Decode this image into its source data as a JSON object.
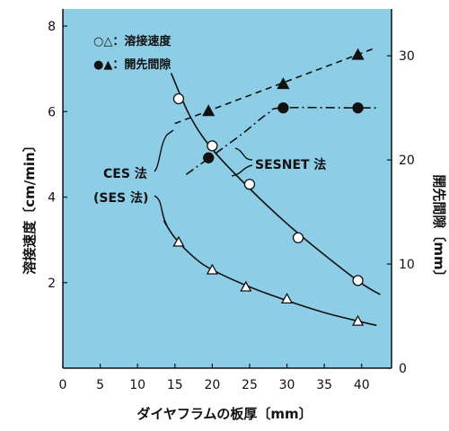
{
  "chart_data": {
    "type": "scatter",
    "xlabel": "ダイヤフラムの板厚〔mm〕",
    "ylabel_left": "溶接速度〔cm/min〕",
    "ylabel_right": "開先間隙〔mm〕",
    "xlim": [
      0,
      44
    ],
    "xticks": [
      0,
      5,
      10,
      15,
      20,
      25,
      30,
      35,
      40
    ],
    "ylim_left": [
      0,
      8.4
    ],
    "yticks_left": [
      2,
      4,
      6,
      8
    ],
    "ylim_right": [
      0,
      34.5
    ],
    "yticks_right": [
      0,
      10,
      20,
      30
    ],
    "legend": {
      "open_symbols": "○△：溶接速度",
      "filled_symbols": "●▲：開先間隙",
      "placement": "top-left"
    },
    "annotations": {
      "ces": "CES 法",
      "ses": "(SES 法)",
      "sesnet": "SESNET 法"
    },
    "series": [
      {
        "name": "SESNET 法",
        "quantity": "溶接速度",
        "axis": "left",
        "marker": "circle-open",
        "points": [
          [
            15.5,
            6.3
          ],
          [
            20,
            5.2
          ],
          [
            25,
            4.3
          ],
          [
            31.5,
            3.05
          ],
          [
            39.5,
            2.05
          ]
        ],
        "curve": [
          [
            14.5,
            6.9
          ],
          [
            17,
            5.9
          ],
          [
            20,
            5.12
          ],
          [
            25,
            4.2
          ],
          [
            30,
            3.38
          ],
          [
            35,
            2.65
          ],
          [
            40,
            1.98
          ],
          [
            42.5,
            1.72
          ]
        ]
      },
      {
        "name": "CES 法 (SES 法)",
        "quantity": "溶接速度",
        "axis": "left",
        "marker": "triangle-open",
        "points": [
          [
            15.5,
            2.95
          ],
          [
            20,
            2.3
          ],
          [
            24.5,
            1.9
          ],
          [
            30,
            1.62
          ],
          [
            39.5,
            1.1
          ]
        ],
        "curve": [
          [
            13.5,
            3.45
          ],
          [
            15,
            3.05
          ],
          [
            17.5,
            2.6
          ],
          [
            20,
            2.3
          ],
          [
            25,
            1.9
          ],
          [
            30,
            1.58
          ],
          [
            35,
            1.3
          ],
          [
            40,
            1.08
          ],
          [
            42,
            1.0
          ]
        ]
      },
      {
        "name": "SESNET 法",
        "quantity": "開先間隙",
        "axis": "right",
        "marker": "circle-filled",
        "points": [
          [
            19.5,
            20.2
          ],
          [
            29.5,
            25
          ],
          [
            39.5,
            25
          ]
        ],
        "curve": [
          [
            16.5,
            18.6
          ],
          [
            20,
            20.4
          ],
          [
            24,
            22.5
          ],
          [
            27.5,
            24.5
          ],
          [
            29.5,
            25
          ],
          [
            39.5,
            25
          ],
          [
            42,
            25
          ]
        ],
        "line_style": "dash-dot"
      },
      {
        "name": "CES 法 (SES 法)",
        "quantity": "開先間隙",
        "axis": "right",
        "marker": "triangle-filled",
        "points": [
          [
            19.5,
            24.7
          ],
          [
            29.5,
            27.3
          ],
          [
            39.5,
            30.1
          ]
        ],
        "curve": [
          [
            15,
            23.5
          ],
          [
            42,
            30.8
          ]
        ],
        "line_style": "dashed"
      }
    ],
    "colors": {
      "plot_background": "#8ecde6",
      "figure_background": "#ffffff",
      "ink": "#111111"
    }
  }
}
